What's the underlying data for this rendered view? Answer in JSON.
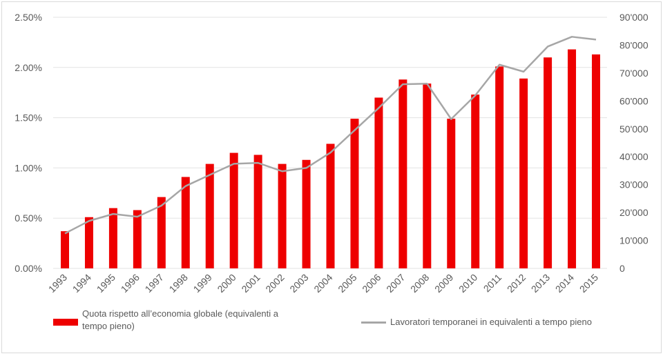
{
  "chart_data": {
    "type": "bar+line",
    "title": "",
    "categories": [
      "1993",
      "1994",
      "1995",
      "1996",
      "1997",
      "1998",
      "1999",
      "2000",
      "2001",
      "2002",
      "2003",
      "2004",
      "2005",
      "2006",
      "2007",
      "2008",
      "2009",
      "2010",
      "2011",
      "2012",
      "2013",
      "2014",
      "2015"
    ],
    "series": [
      {
        "name": "Quota rispetto all’economia globale (equivalenti a tempo pieno)",
        "type": "bar",
        "axis": "left",
        "color": "#ee0000",
        "values": [
          0.37,
          0.51,
          0.6,
          0.58,
          0.71,
          0.91,
          1.04,
          1.15,
          1.13,
          1.04,
          1.08,
          1.24,
          1.49,
          1.7,
          1.88,
          1.84,
          1.49,
          1.73,
          2.01,
          1.89,
          2.1,
          2.18,
          2.13
        ]
      },
      {
        "name": "Lavoratori temporanei in equivalenti a tempo pieno",
        "type": "line",
        "axis": "right",
        "color": "#a6a6a6",
        "values": [
          12500,
          17000,
          19500,
          18500,
          22500,
          29500,
          33500,
          37500,
          37800,
          34800,
          36000,
          41500,
          49500,
          57500,
          66000,
          66200,
          53500,
          62000,
          73000,
          70500,
          79500,
          83000,
          82000
        ]
      }
    ],
    "left_axis": {
      "ylim": [
        0,
        2.5
      ],
      "ticks": [
        "0.00%",
        "0.50%",
        "1.00%",
        "1.50%",
        "2.00%",
        "2.50%"
      ]
    },
    "right_axis": {
      "ylim": [
        0,
        90000
      ],
      "ticks": [
        "0",
        "10'000",
        "20'000",
        "30'000",
        "40'000",
        "50'000",
        "60'000",
        "70'000",
        "80'000",
        "90'000"
      ]
    },
    "grid": true,
    "legend_placement": "bottom",
    "legend": {
      "bar_line1": "Quota rispetto all’economia globale (equivalenti a",
      "bar_line2": "tempo pieno)",
      "line_label": "Lavoratori temporanei in equivalenti a tempo pieno"
    }
  }
}
